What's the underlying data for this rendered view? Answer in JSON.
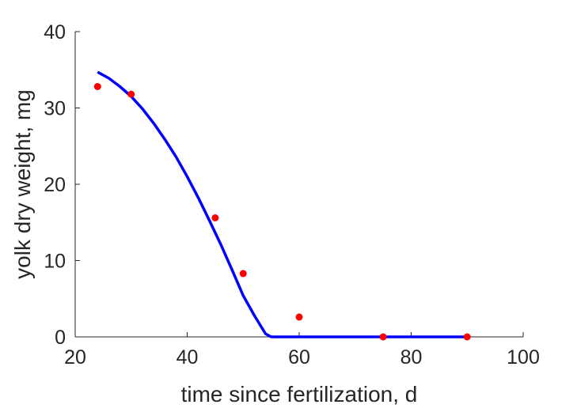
{
  "chart_data": {
    "type": "scatter",
    "title": "",
    "xlabel": "time since fertilization, d",
    "ylabel": "yolk dry weight, mg",
    "xlim": [
      20,
      100
    ],
    "ylim": [
      0,
      40
    ],
    "xticks": [
      "20",
      "40",
      "60",
      "80",
      "100"
    ],
    "yticks": [
      "0",
      "10",
      "20",
      "30",
      "40"
    ],
    "grid": false,
    "legend": "none",
    "series": [
      {
        "kind": "points",
        "color": "#ff0000",
        "x": [
          24,
          30,
          45,
          50,
          60,
          75,
          90
        ],
        "y": [
          32.8,
          31.8,
          15.6,
          8.3,
          2.6,
          0.0,
          0.0
        ]
      },
      {
        "kind": "line",
        "color": "#0000ff",
        "x": [
          24,
          26,
          28,
          30,
          32,
          34,
          36,
          38,
          40,
          42,
          44,
          46,
          48,
          50,
          52,
          54,
          55,
          60,
          70,
          80,
          90
        ],
        "y": [
          34.7,
          33.9,
          32.8,
          31.5,
          29.9,
          28.0,
          25.9,
          23.6,
          21.0,
          18.2,
          15.2,
          12.1,
          8.8,
          5.4,
          2.8,
          0.4,
          0.0,
          0.0,
          0.0,
          0.0,
          0.0
        ]
      }
    ]
  }
}
